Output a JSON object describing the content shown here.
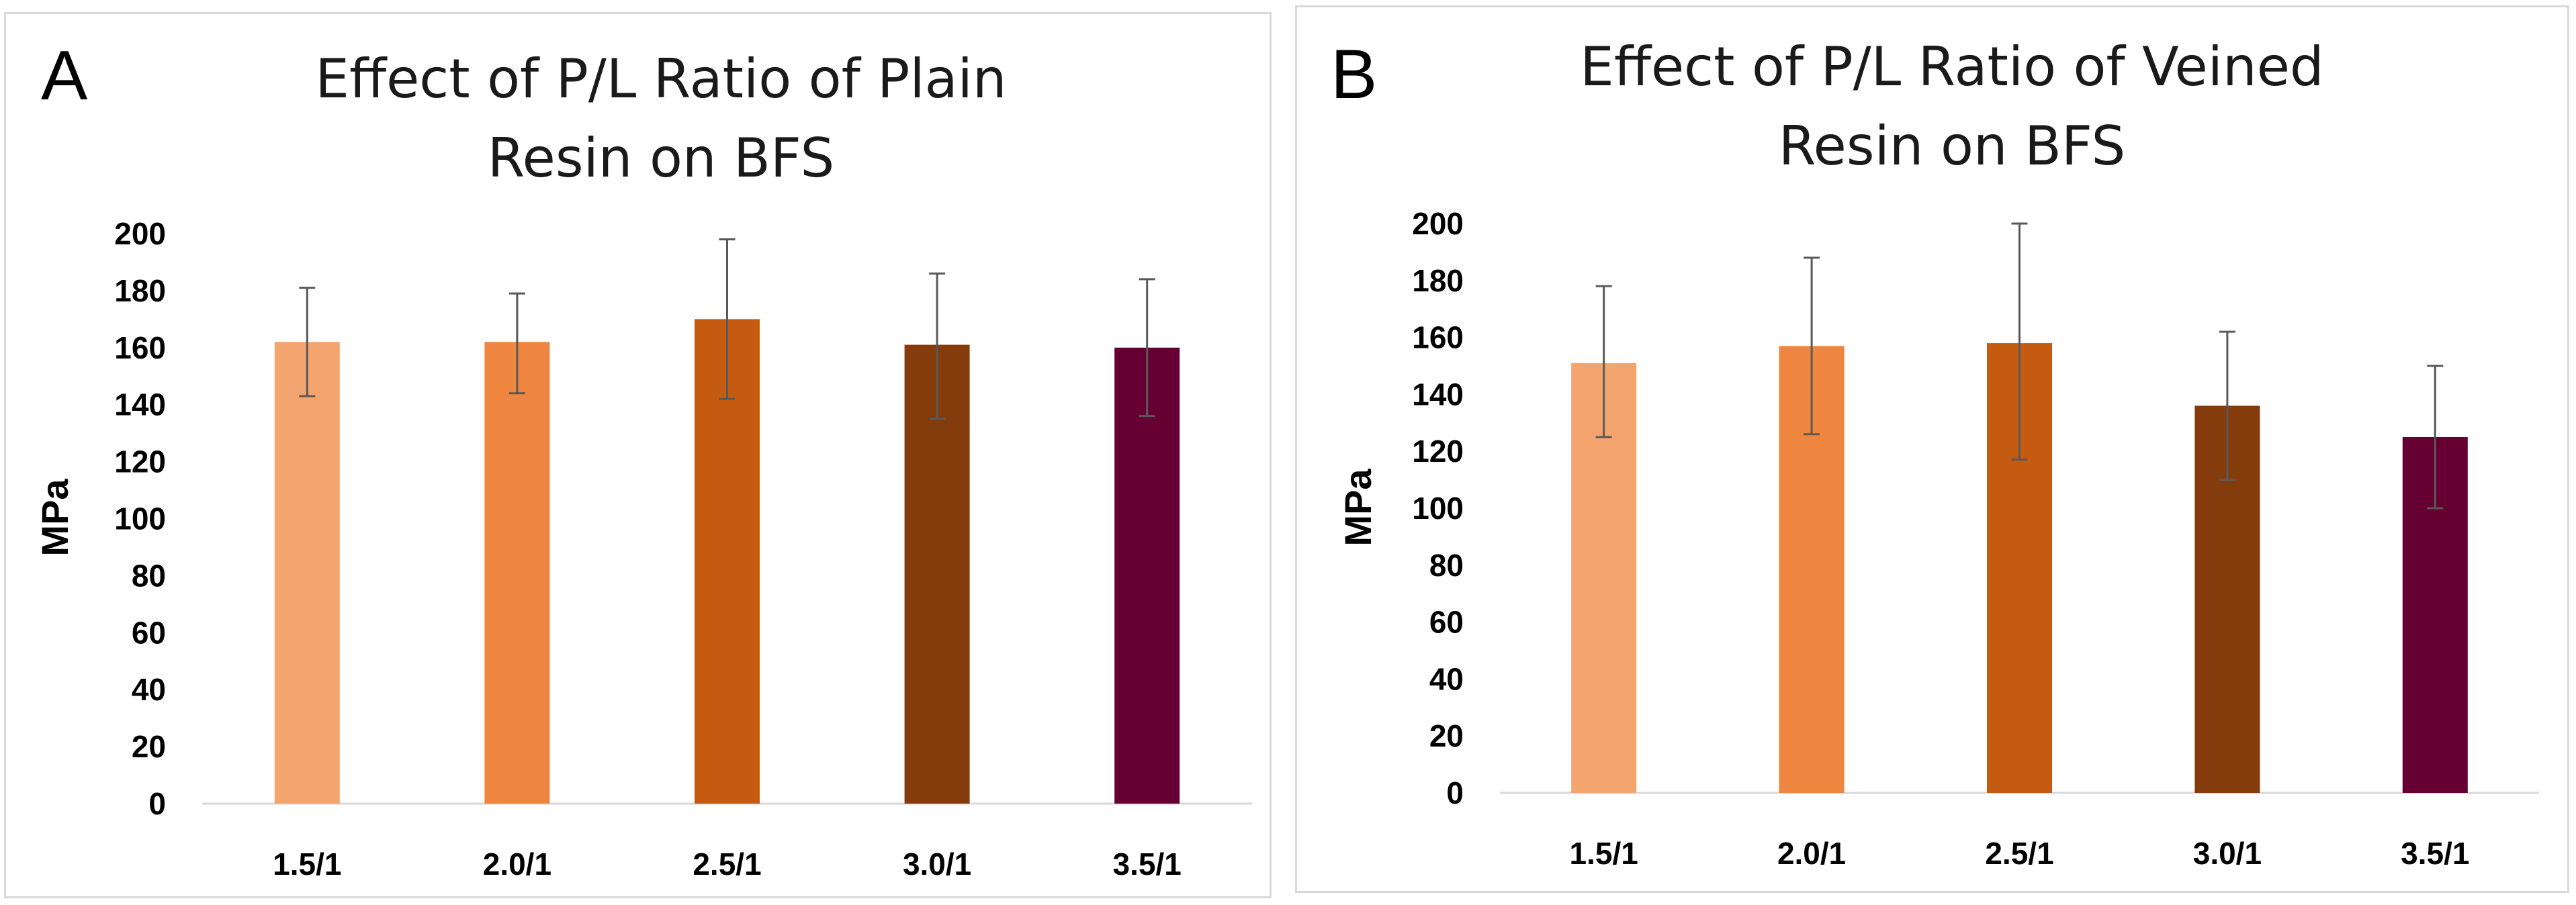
{
  "chart_data": [
    {
      "panel": "A",
      "type": "bar",
      "title_lines": [
        "Effect of P/L Ratio of Plain",
        "Resin on BFS"
      ],
      "ylabel": "MPa",
      "xlabel": "",
      "ylim": [
        0,
        200
      ],
      "yticks": [
        0,
        20,
        40,
        60,
        80,
        100,
        120,
        140,
        160,
        180,
        200
      ],
      "grid": false,
      "legend": "none",
      "categories": [
        "1.5/1",
        "2.0/1",
        "2.5/1",
        "3.0/1",
        "3.5/1"
      ],
      "values": [
        162,
        162,
        170,
        161,
        160
      ],
      "error_low": [
        143,
        144,
        142,
        135,
        136
      ],
      "error_high": [
        181,
        179,
        198,
        186,
        184
      ],
      "colors": [
        "#F4A46E",
        "#EF8640",
        "#C55A11",
        "#843C0C",
        "#660033"
      ]
    },
    {
      "panel": "B",
      "type": "bar",
      "title_lines": [
        "Effect of P/L Ratio of Veined",
        "Resin on BFS"
      ],
      "ylabel": "MPa",
      "xlabel": "",
      "ylim": [
        0,
        200
      ],
      "yticks": [
        0,
        20,
        40,
        60,
        80,
        100,
        120,
        140,
        160,
        180,
        200
      ],
      "grid": false,
      "legend": "none",
      "categories": [
        "1.5/1",
        "2.0/1",
        "2.5/1",
        "3.0/1",
        "3.5/1"
      ],
      "values": [
        151,
        157,
        158,
        136,
        125
      ],
      "error_low": [
        125,
        126,
        117,
        110,
        100
      ],
      "error_high": [
        178,
        188,
        200,
        162,
        150
      ],
      "colors": [
        "#F4A46E",
        "#EF8640",
        "#C55A11",
        "#843C0C",
        "#660033"
      ]
    }
  ]
}
